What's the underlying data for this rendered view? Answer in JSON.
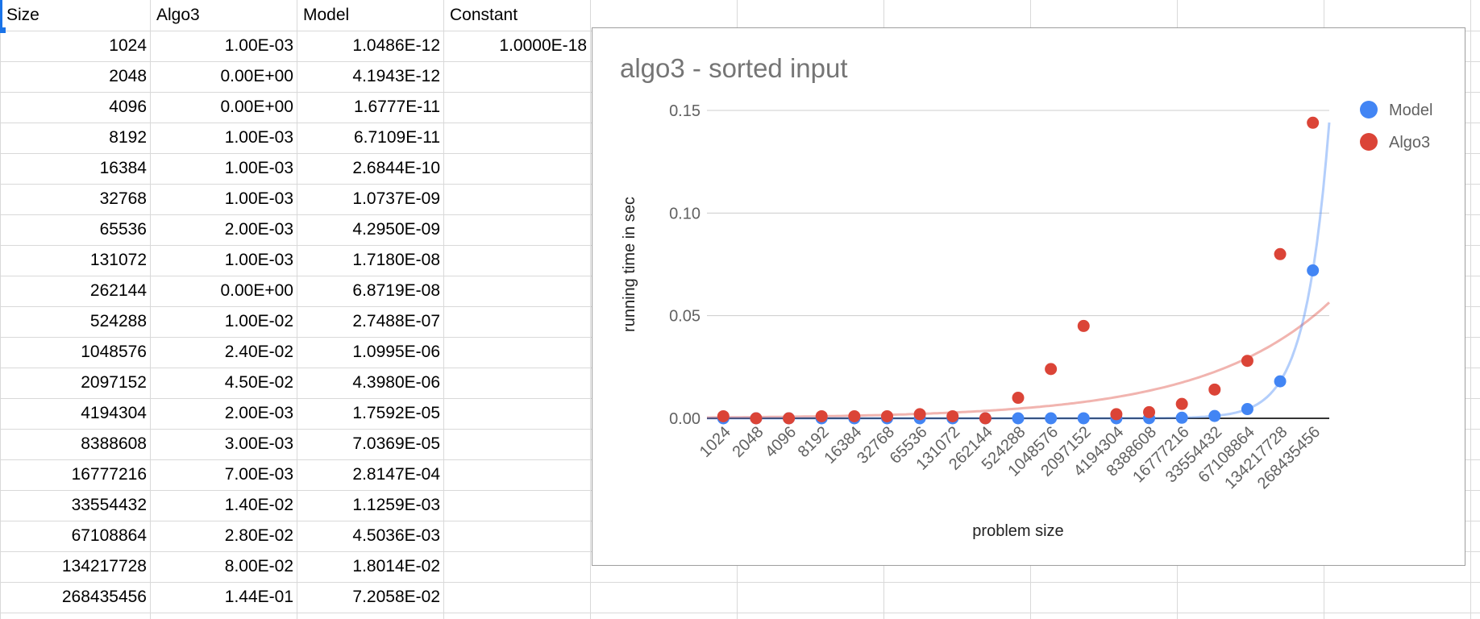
{
  "sheet": {
    "headers": [
      "Size",
      "Algo3",
      "Model",
      "Constant"
    ],
    "constant_value": "1.0000E-18",
    "rows": [
      [
        "1024",
        "1.00E-03",
        "1.0486E-12"
      ],
      [
        "2048",
        "0.00E+00",
        "4.1943E-12"
      ],
      [
        "4096",
        "0.00E+00",
        "1.6777E-11"
      ],
      [
        "8192",
        "1.00E-03",
        "6.7109E-11"
      ],
      [
        "16384",
        "1.00E-03",
        "2.6844E-10"
      ],
      [
        "32768",
        "1.00E-03",
        "1.0737E-09"
      ],
      [
        "65536",
        "2.00E-03",
        "4.2950E-09"
      ],
      [
        "131072",
        "1.00E-03",
        "1.7180E-08"
      ],
      [
        "262144",
        "0.00E+00",
        "6.8719E-08"
      ],
      [
        "524288",
        "1.00E-02",
        "2.7488E-07"
      ],
      [
        "1048576",
        "2.40E-02",
        "1.0995E-06"
      ],
      [
        "2097152",
        "4.50E-02",
        "4.3980E-06"
      ],
      [
        "4194304",
        "2.00E-03",
        "1.7592E-05"
      ],
      [
        "8388608",
        "3.00E-03",
        "7.0369E-05"
      ],
      [
        "16777216",
        "7.00E-03",
        "2.8147E-04"
      ],
      [
        "33554432",
        "1.40E-02",
        "1.1259E-03"
      ],
      [
        "67108864",
        "2.80E-02",
        "4.5036E-03"
      ],
      [
        "134217728",
        "8.00E-02",
        "1.8014E-02"
      ],
      [
        "268435456",
        "1.44E-01",
        "7.2058E-02"
      ]
    ]
  },
  "chart_data": {
    "type": "scatter",
    "title": "algo3 - sorted input",
    "xlabel": "problem size",
    "ylabel": "running time in sec",
    "categories": [
      "1024",
      "2048",
      "4096",
      "8192",
      "16384",
      "32768",
      "65536",
      "131072",
      "262144",
      "524288",
      "1048576",
      "2097152",
      "4194304",
      "8388608",
      "16777216",
      "33554432",
      "67108864",
      "134217728",
      "268435456"
    ],
    "ylim": [
      0,
      0.15
    ],
    "yticks": [
      "0.00",
      "0.05",
      "0.10",
      "0.15"
    ],
    "grid": true,
    "legend_position": "right",
    "series": [
      {
        "name": "Model",
        "color": "#4285f4",
        "trendline": "exponential",
        "values": [
          1.0486e-12,
          4.1943e-12,
          1.6777e-11,
          6.7109e-11,
          2.6844e-10,
          1.0737e-09,
          4.295e-09,
          1.718e-08,
          6.8719e-08,
          2.7488e-07,
          1.0995e-06,
          4.398e-06,
          1.7592e-05,
          7.0369e-05,
          0.00028147,
          0.0011259,
          0.0045036,
          0.018014,
          0.072058
        ]
      },
      {
        "name": "Algo3",
        "color": "#db4437",
        "trendline": "exponential",
        "values": [
          0.001,
          0.0,
          0.0,
          0.001,
          0.001,
          0.001,
          0.002,
          0.001,
          0.0,
          0.01,
          0.024,
          0.045,
          0.002,
          0.003,
          0.007,
          0.014,
          0.028,
          0.08,
          0.144
        ]
      }
    ]
  }
}
